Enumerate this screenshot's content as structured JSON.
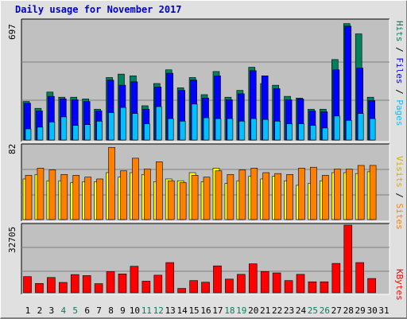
{
  "title": "Daily usage for November 2017",
  "colors": {
    "hits": "#00805c",
    "files": "#0000ff",
    "pages": "#00c0ff",
    "visits": "#ffff00",
    "sites": "#ff8000",
    "kbytes": "#ff0000",
    "panel": "#c0c0c0",
    "weekend": "#00805c",
    "weekday": "#000000",
    "title": "#0000cc"
  },
  "chart_data": [
    {
      "type": "bar",
      "title": "Daily usage for November 2017",
      "ymax_label": "697",
      "ymax": 697,
      "legend": [
        {
          "name": "Pages",
          "color": "#00c0ff"
        },
        {
          "name": "Files",
          "color": "#0000ff"
        },
        {
          "name": "Hits",
          "color": "#00805c"
        }
      ],
      "legend_sep": " / ",
      "categories": [
        "1",
        "2",
        "3",
        "4",
        "5",
        "6",
        "7",
        "8",
        "9",
        "10",
        "11",
        "12",
        "13",
        "14",
        "15",
        "16",
        "17",
        "18",
        "19",
        "20",
        "21",
        "22",
        "23",
        "24",
        "25",
        "26",
        "27",
        "28",
        "29",
        "30",
        "31"
      ],
      "series": [
        {
          "name": "Hits",
          "values": [
            225,
            185,
            280,
            250,
            250,
            240,
            180,
            365,
            385,
            375,
            200,
            330,
            410,
            305,
            365,
            265,
            400,
            250,
            290,
            425,
            330,
            320,
            255,
            245,
            180,
            180,
            470,
            680,
            620,
            250,
            0
          ]
        },
        {
          "name": "Files",
          "values": [
            215,
            170,
            255,
            240,
            235,
            225,
            170,
            350,
            320,
            340,
            180,
            310,
            390,
            290,
            350,
            245,
            375,
            235,
            270,
            405,
            375,
            300,
            235,
            240,
            170,
            165,
            410,
            665,
            420,
            230,
            0
          ]
        },
        {
          "name": "Pages",
          "values": [
            65,
            75,
            105,
            135,
            85,
            90,
            110,
            160,
            190,
            155,
            95,
            195,
            125,
            110,
            210,
            130,
            125,
            125,
            110,
            125,
            120,
            110,
            95,
            95,
            85,
            70,
            140,
            115,
            155,
            125,
            0
          ]
        }
      ]
    },
    {
      "type": "bar",
      "ymax_label": "82",
      "ymax": 82,
      "legend": [
        {
          "name": "Sites",
          "color": "#ff8000"
        },
        {
          "name": "Visits",
          "color": "#ffff00"
        }
      ],
      "legend_sep": " / ",
      "categories": [
        "1",
        "2",
        "3",
        "4",
        "5",
        "6",
        "7",
        "8",
        "9",
        "10",
        "11",
        "12",
        "13",
        "14",
        "15",
        "16",
        "17",
        "18",
        "19",
        "20",
        "21",
        "22",
        "23",
        "24",
        "25",
        "26",
        "27",
        "28",
        "29",
        "30",
        "31"
      ],
      "series": [
        {
          "name": "Visits",
          "values": [
            45,
            50,
            43,
            43,
            41,
            42,
            42,
            52,
            47,
            52,
            50,
            42,
            45,
            43,
            52,
            42,
            57,
            40,
            43,
            48,
            45,
            48,
            43,
            38,
            40,
            43,
            52,
            52,
            51,
            53,
            0
          ]
        },
        {
          "name": "Sites",
          "values": [
            49,
            57,
            55,
            50,
            49,
            47,
            45,
            80,
            54,
            68,
            56,
            64,
            43,
            41,
            49,
            47,
            54,
            50,
            55,
            57,
            52,
            51,
            50,
            57,
            58,
            49,
            56,
            56,
            60,
            60,
            0
          ]
        }
      ]
    },
    {
      "type": "bar",
      "ymax_label": "32705",
      "ymax": 32705,
      "legend": [
        {
          "name": "KBytes",
          "color": "#ff0000"
        }
      ],
      "legend_sep": "",
      "categories": [
        "1",
        "2",
        "3",
        "4",
        "5",
        "6",
        "7",
        "8",
        "9",
        "10",
        "11",
        "12",
        "13",
        "14",
        "15",
        "16",
        "17",
        "18",
        "19",
        "20",
        "21",
        "22",
        "23",
        "24",
        "25",
        "26",
        "27",
        "28",
        "29",
        "30",
        "31"
      ],
      "series": [
        {
          "name": "KBytes",
          "values": [
            7800,
            4500,
            7400,
            5000,
            8800,
            8300,
            4400,
            10200,
            9100,
            12800,
            5600,
            8500,
            14600,
            2100,
            5900,
            5100,
            13000,
            6600,
            8900,
            14000,
            10300,
            9600,
            5900,
            8900,
            5300,
            5300,
            14200,
            32705,
            14600,
            6900,
            0
          ]
        }
      ]
    }
  ],
  "days": [
    {
      "label": "1",
      "weekend": false
    },
    {
      "label": "2",
      "weekend": false
    },
    {
      "label": "3",
      "weekend": false
    },
    {
      "label": "4",
      "weekend": true
    },
    {
      "label": "5",
      "weekend": true
    },
    {
      "label": "6",
      "weekend": false
    },
    {
      "label": "7",
      "weekend": false
    },
    {
      "label": "8",
      "weekend": false
    },
    {
      "label": "9",
      "weekend": false
    },
    {
      "label": "10",
      "weekend": false
    },
    {
      "label": "11",
      "weekend": true
    },
    {
      "label": "12",
      "weekend": true
    },
    {
      "label": "13",
      "weekend": false
    },
    {
      "label": "14",
      "weekend": false
    },
    {
      "label": "15",
      "weekend": false
    },
    {
      "label": "16",
      "weekend": false
    },
    {
      "label": "17",
      "weekend": false
    },
    {
      "label": "18",
      "weekend": true
    },
    {
      "label": "19",
      "weekend": true
    },
    {
      "label": "20",
      "weekend": false
    },
    {
      "label": "21",
      "weekend": false
    },
    {
      "label": "22",
      "weekend": false
    },
    {
      "label": "23",
      "weekend": false
    },
    {
      "label": "24",
      "weekend": false
    },
    {
      "label": "25",
      "weekend": true
    },
    {
      "label": "26",
      "weekend": true
    },
    {
      "label": "27",
      "weekend": false
    },
    {
      "label": "28",
      "weekend": false
    },
    {
      "label": "29",
      "weekend": false
    },
    {
      "label": "30",
      "weekend": false
    },
    {
      "label": "31",
      "weekend": false
    }
  ]
}
